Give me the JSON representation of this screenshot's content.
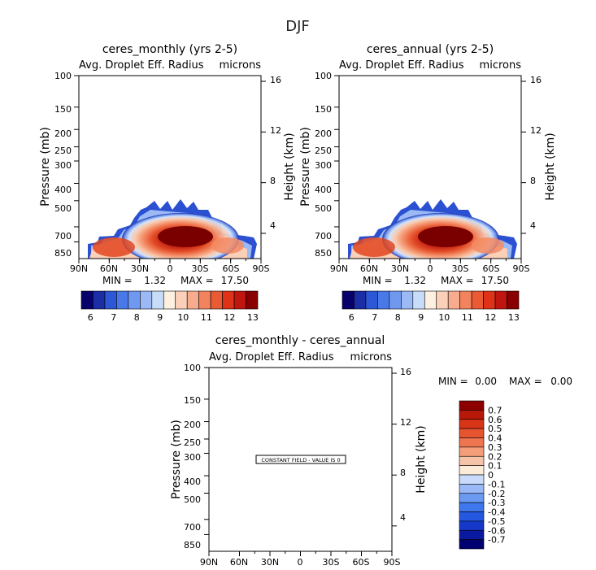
{
  "page_title": "DJF",
  "colors": {
    "diverging": [
      "#08006b",
      "#1b2ea6",
      "#2e57d6",
      "#4979e8",
      "#6f98f0",
      "#9bb9f5",
      "#c6dcf9",
      "#fdf0e0",
      "#fbd0b8",
      "#f8ac8e",
      "#f2835f",
      "#ea5a35",
      "#de3318",
      "#bf1610",
      "#8a0000"
    ],
    "diff": [
      "#000070",
      "#0a1aa0",
      "#1538c8",
      "#2558e0",
      "#3e78ec",
      "#6a9af2",
      "#9ab9f6",
      "#c9dafa",
      "#fdebd9",
      "#f7c3a8",
      "#f49d79",
      "#ef7550",
      "#e75430",
      "#d83418",
      "#b81808",
      "#8c0000"
    ]
  },
  "chart_data": [
    {
      "type": "heatmap",
      "title": "ceres_monthly (yrs 2-5)",
      "left_label": "Avg. Droplet Eff. Radius",
      "right_label": "microns",
      "ylabel": "Pressure (mb)",
      "ylabel_right": "Height (km)",
      "x_ticks": [
        "90N",
        "60N",
        "30N",
        "0",
        "30S",
        "60S",
        "90S"
      ],
      "y_ticks": [
        "100",
        "150",
        "200",
        "250",
        "300",
        "400",
        "500",
        "700",
        "850"
      ],
      "y_ticks_right": [
        "16",
        "12",
        "8",
        "4"
      ],
      "min_max": {
        "min_label": "MIN =",
        "min": "1.32",
        "max_label": "MAX =",
        "max": "17.50"
      },
      "xlim": [
        -90,
        90
      ],
      "ylim": [
        100,
        1000
      ],
      "log_y": true,
      "colorbar_labels": [
        "6",
        "7",
        "8",
        "9",
        "10",
        "11",
        "12",
        "13"
      ],
      "colorbar_levels": [
        5.5,
        13.5
      ]
    },
    {
      "type": "heatmap",
      "title": "ceres_annual (yrs 2-5)",
      "left_label": "Avg. Droplet Eff. Radius",
      "right_label": "microns",
      "ylabel": "Pressure (mb)",
      "ylabel_right": "Height (km)",
      "x_ticks": [
        "90N",
        "60N",
        "30N",
        "0",
        "30S",
        "60S",
        "90S"
      ],
      "y_ticks": [
        "100",
        "150",
        "200",
        "250",
        "300",
        "400",
        "500",
        "700",
        "850"
      ],
      "y_ticks_right": [
        "16",
        "12",
        "8",
        "4"
      ],
      "min_max": {
        "min_label": "MIN =",
        "min": "1.32",
        "max_label": "MAX =",
        "max": "17.50"
      },
      "xlim": [
        -90,
        90
      ],
      "ylim": [
        100,
        1000
      ],
      "log_y": true,
      "colorbar_labels": [
        "6",
        "7",
        "8",
        "9",
        "10",
        "11",
        "12",
        "13"
      ],
      "colorbar_levels": [
        5.5,
        13.5
      ]
    },
    {
      "type": "heatmap",
      "title": "ceres_monthly - ceres_annual",
      "left_label": "Avg. Droplet Eff. Radius",
      "right_label": "microns",
      "ylabel": "Pressure (mb)",
      "ylabel_right": "Height (km)",
      "x_ticks": [
        "90N",
        "60N",
        "30N",
        "0",
        "30S",
        "60S",
        "90S"
      ],
      "y_ticks": [
        "100",
        "150",
        "200",
        "250",
        "300",
        "400",
        "500",
        "700",
        "850"
      ],
      "y_ticks_right": [
        "16",
        "12",
        "8",
        "4"
      ],
      "min_max": {
        "min_label": "MIN =",
        "min": "0.00",
        "max_label": "MAX =",
        "max": "0.00"
      },
      "annotation": "CONSTANT FIELD - VALUE IS 0",
      "xlim": [
        -90,
        90
      ],
      "ylim": [
        100,
        1000
      ],
      "log_y": true,
      "colorbar_labels": [
        "0.7",
        "0.6",
        "0.5",
        "0.4",
        "0.3",
        "0.2",
        "0.1",
        "0",
        "-0.1",
        "-0.2",
        "-0.3",
        "-0.4",
        "-0.5",
        "-0.6",
        "-0.7"
      ]
    }
  ]
}
